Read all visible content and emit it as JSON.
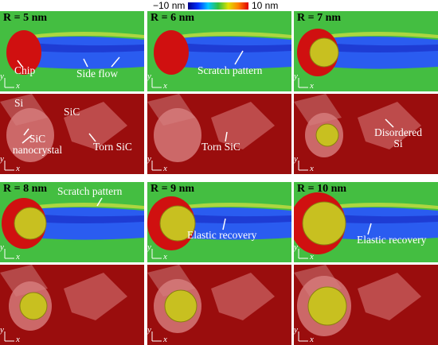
{
  "colorbar": {
    "min_label": "−10 nm",
    "max_label": "10 nm"
  },
  "axes": {
    "y": "y",
    "x": "x"
  },
  "rows": [
    {
      "panels": [
        {
          "label": "R = 5 nm",
          "annotations": [
            "Chip",
            "Side flow"
          ]
        },
        {
          "label": "R = 6 nm",
          "annotations": [
            "Scratch pattern"
          ]
        },
        {
          "label": "R = 7 nm",
          "annotations": []
        }
      ]
    },
    {
      "panels": [
        {
          "annotations": [
            "Si",
            "SiC",
            "SiC nanocrystal",
            "Torn SiC"
          ]
        },
        {
          "annotations": [
            "Torn SiC"
          ]
        },
        {
          "annotations": [
            "Disordered Si"
          ]
        }
      ]
    },
    {
      "panels": [
        {
          "label": "R = 8 nm",
          "annotations": [
            "Scratch pattern"
          ]
        },
        {
          "label": "R = 9 nm",
          "annotations": [
            "Elastic recovery"
          ]
        },
        {
          "label": "R = 10 nm",
          "annotations": [
            "Elastic recovery"
          ]
        }
      ]
    },
    {
      "panels": [
        {
          "annotations": []
        },
        {
          "annotations": []
        },
        {
          "annotations": []
        }
      ]
    }
  ]
}
